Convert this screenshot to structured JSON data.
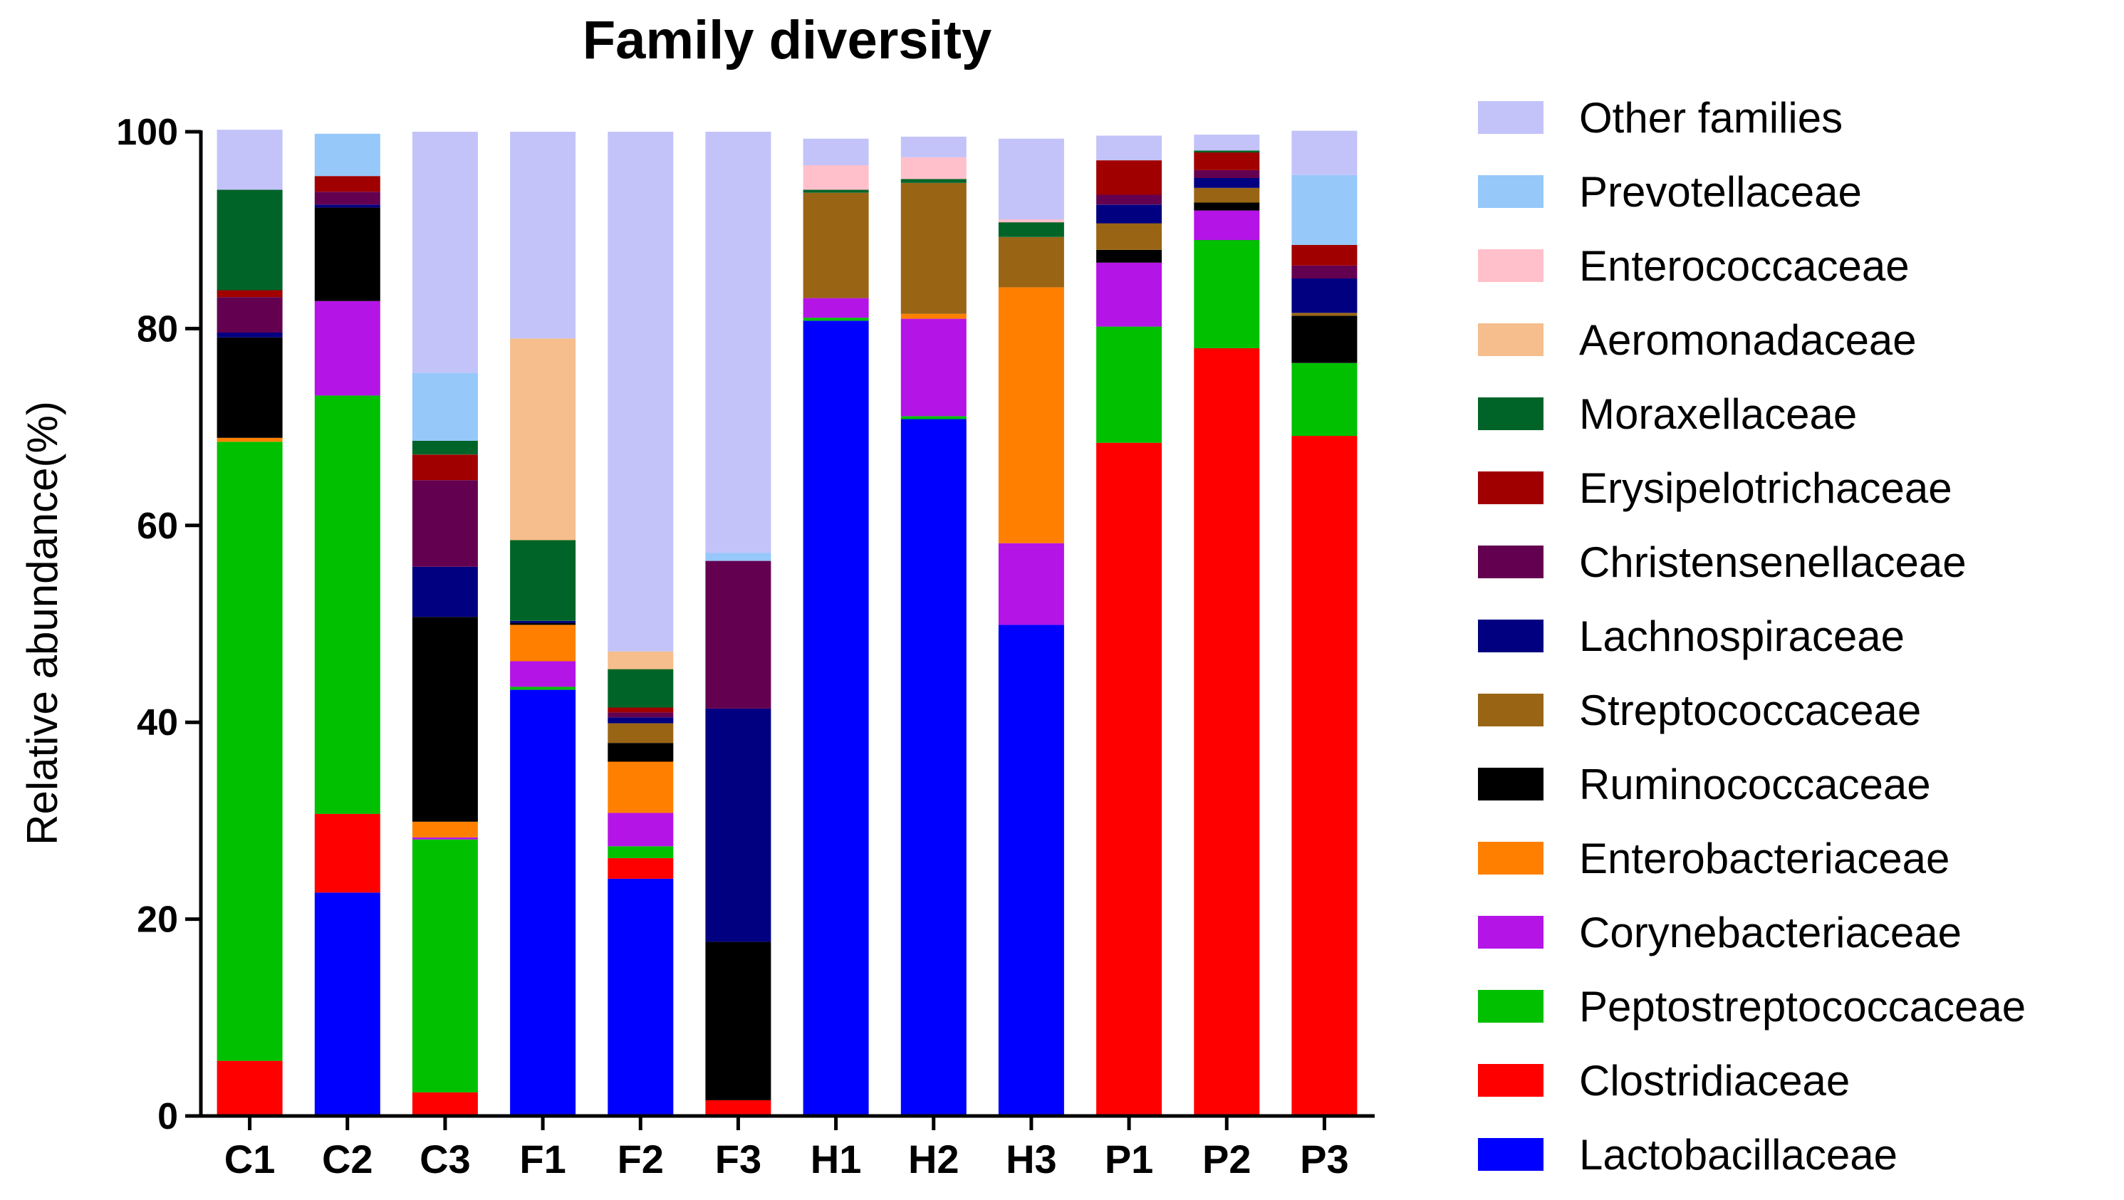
{
  "chart_data": {
    "type": "bar",
    "stacked": true,
    "title": "Family diversity",
    "xlabel": "",
    "ylabel": "Relative abundance(%)",
    "ylim": [
      0,
      100
    ],
    "yticks": [
      "0",
      "20",
      "40",
      "60",
      "80",
      "100"
    ],
    "categories": [
      "C1",
      "C2",
      "C3",
      "F1",
      "F2",
      "F3",
      "H1",
      "H2",
      "H3",
      "P1",
      "P2",
      "P3"
    ],
    "legend_position": "right",
    "grid": false,
    "series": [
      {
        "name": "Lactobacillaceae",
        "color": "#0000FF",
        "values": [
          0,
          22.7,
          0,
          43.3,
          24.1,
          0,
          80.8,
          70.8,
          49.9,
          0,
          0,
          0
        ]
      },
      {
        "name": "Clostridiaceae",
        "color": "#FF0000",
        "values": [
          5.6,
          8.0,
          2.4,
          0,
          2.1,
          1.6,
          0,
          0,
          0,
          68.4,
          78.0,
          69.1
        ]
      },
      {
        "name": "Peptostreptococcaceae",
        "color": "#00C000",
        "values": [
          62.9,
          42.5,
          25.7,
          0.3,
          1.2,
          0,
          0.3,
          0.3,
          0,
          11.8,
          11.0,
          7.4
        ]
      },
      {
        "name": "Corynebacteriaceae",
        "color": "#B414E6",
        "values": [
          0,
          9.6,
          0.2,
          2.6,
          3.4,
          0,
          2.0,
          9.9,
          8.3,
          6.5,
          3.0,
          0
        ]
      },
      {
        "name": "Enterobacteriaceae",
        "color": "#FF8000",
        "values": [
          0.4,
          0,
          1.6,
          3.7,
          5.2,
          0,
          0,
          0.5,
          26.0,
          0,
          0,
          0
        ]
      },
      {
        "name": "Ruminococcaceae",
        "color": "#000000",
        "values": [
          10.2,
          9.5,
          20.8,
          0.2,
          1.9,
          16.1,
          0,
          0,
          0,
          1.3,
          0.8,
          4.8
        ]
      },
      {
        "name": "Streptococcaceae",
        "color": "#996515",
        "values": [
          0,
          0,
          0,
          0,
          2.0,
          0,
          10.7,
          13.3,
          5.1,
          2.7,
          1.5,
          0.3
        ]
      },
      {
        "name": "Lachnospiraceae",
        "color": "#000080",
        "values": [
          0.5,
          0.3,
          5.1,
          0.2,
          0.6,
          23.7,
          0,
          0,
          0,
          1.9,
          1.0,
          3.5
        ]
      },
      {
        "name": "Christensenellaceae",
        "color": "#640050",
        "values": [
          3.6,
          1.3,
          8.8,
          0,
          0.5,
          15.0,
          0,
          0,
          0,
          1.0,
          0.8,
          1.3
        ]
      },
      {
        "name": "Erysipelotrichaceae",
        "color": "#A00000",
        "values": [
          0.7,
          1.6,
          2.6,
          0,
          0.5,
          0,
          0,
          0,
          0,
          3.5,
          1.8,
          2.1
        ]
      },
      {
        "name": "Moraxellaceae",
        "color": "#006428",
        "values": [
          10.2,
          0,
          1.4,
          8.2,
          3.9,
          0,
          0.3,
          0.4,
          1.5,
          0,
          0.2,
          0
        ]
      },
      {
        "name": "Aeromonadaceae",
        "color": "#F5BE8C",
        "values": [
          0,
          0,
          0,
          20.5,
          1.8,
          0,
          0,
          0,
          0,
          0,
          0,
          0
        ]
      },
      {
        "name": "Enterococcaceae",
        "color": "#FFC0CB",
        "values": [
          0,
          0,
          0,
          0,
          0,
          0,
          2.5,
          2.2,
          0.3,
          0,
          0,
          0
        ]
      },
      {
        "name": "Prevotellaceae",
        "color": "#96C8FA",
        "values": [
          0,
          4.3,
          6.9,
          0,
          0,
          0.8,
          0,
          0,
          0,
          0,
          0,
          7.1
        ]
      },
      {
        "name": "Other families",
        "color": "#C3C3FA",
        "values": [
          6.1,
          0,
          24.5,
          21.0,
          52.8,
          42.8,
          2.7,
          2.1,
          8.2,
          2.5,
          1.6,
          4.5
        ]
      }
    ]
  }
}
